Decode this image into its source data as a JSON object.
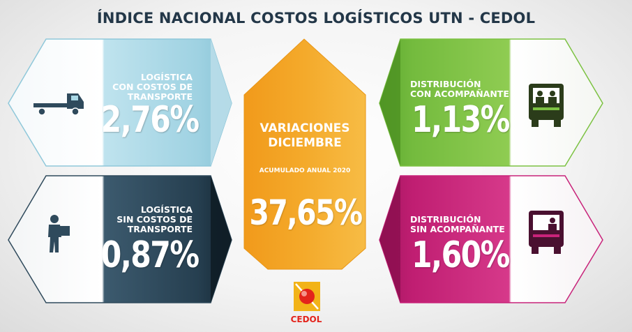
{
  "header": {
    "title": "ÍNDICE NACIONAL COSTOS LOGÍSTICOS UTN - CEDOL"
  },
  "panels": {
    "top_left": {
      "label_lines": [
        "LOGÍSTICA",
        "CON COSTOS DE",
        "TRANSPORTE"
      ],
      "value": "2,76%",
      "icon": "flatbed-truck-icon",
      "color": "#a9d8e6"
    },
    "bottom_left": {
      "label_lines": [
        "LOGÍSTICA",
        "SIN COSTOS DE",
        "TRANSPORTE"
      ],
      "value": "0,87%",
      "icon": "delivery-person-icon",
      "color": "#2f4a5c"
    },
    "top_right": {
      "label_lines": [
        "DISTRIBUCIÓN",
        "CON ACOMPAÑANTE"
      ],
      "value": "1,13%",
      "icon": "truck-front-two-people-icon",
      "color": "#7cc242"
    },
    "bottom_right": {
      "label_lines": [
        "DISTRIBUCIÓN",
        "SIN ACOMPAÑANTE"
      ],
      "value": "1,60%",
      "icon": "truck-front-driver-icon",
      "color": "#c8237a"
    }
  },
  "center": {
    "title_lines": [
      "VARIACIONES",
      "DICIEMBRE"
    ],
    "subtitle": "ACUMULADO ANUAL 2020",
    "value": "37,65%",
    "color": "#f3a623"
  },
  "logo": {
    "text": "CEDOL",
    "icon": "cedol-logo-icon"
  }
}
